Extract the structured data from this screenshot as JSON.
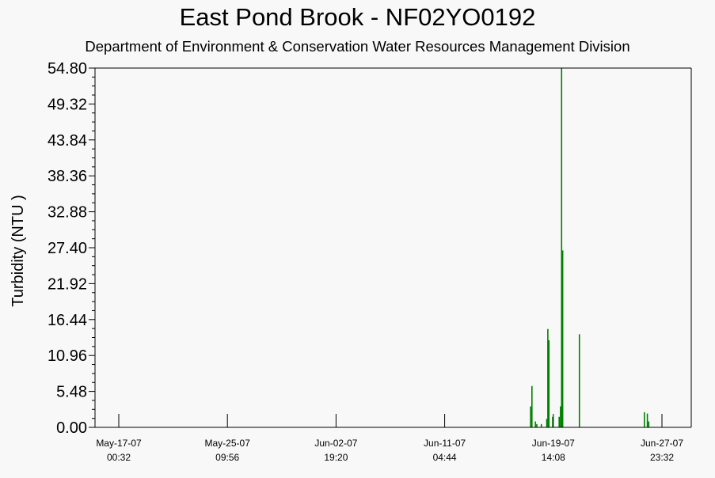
{
  "chart_data": {
    "type": "bar",
    "title": "East Pond Brook - NF02YO0192",
    "subtitle": "Department of Environment & Conservation Water Resources Management Division",
    "ylabel": "Turbidity (NTU )",
    "xlabel": "",
    "ylim": [
      0,
      54.8
    ],
    "yticks": [
      "0.00",
      "5.48",
      "10.96",
      "16.44",
      "21.92",
      "27.40",
      "32.88",
      "38.36",
      "43.84",
      "49.32",
      "54.80"
    ],
    "xlim": [
      "2007-05-17 00:32",
      "2007-06-27 23:32"
    ],
    "xticks": [
      {
        "date": "May-17-07",
        "time": "00:32"
      },
      {
        "date": "May-25-07",
        "time": "09:56"
      },
      {
        "date": "Jun-02-07",
        "time": "19:20"
      },
      {
        "date": "Jun-11-07",
        "time": "04:44"
      },
      {
        "date": "Jun-19-07",
        "time": "14:08"
      },
      {
        "date": "Jun-27-07",
        "time": "23:32"
      }
    ],
    "series_color": "#008000",
    "grid": false,
    "points": [
      {
        "x": "2007-06-17 20:00",
        "y": 3.2
      },
      {
        "x": "2007-06-17 22:30",
        "y": 6.3
      },
      {
        "x": "2007-06-18 05:00",
        "y": 0.9
      },
      {
        "x": "2007-06-18 07:30",
        "y": 0.5
      },
      {
        "x": "2007-06-18 16:00",
        "y": 0.5
      },
      {
        "x": "2007-06-19 02:00",
        "y": 1.3
      },
      {
        "x": "2007-06-19 04:00",
        "y": 15.0
      },
      {
        "x": "2007-06-19 06:00",
        "y": 13.3
      },
      {
        "x": "2007-06-19 13:00",
        "y": 1.6
      },
      {
        "x": "2007-06-20 01:00",
        "y": 1.6
      },
      {
        "x": "2007-06-20 03:30",
        "y": 3.2
      },
      {
        "x": "2007-06-20 05:30",
        "y": 54.8
      },
      {
        "x": "2007-06-20 07:30",
        "y": 27.0
      },
      {
        "x": "2007-06-21 14:30",
        "y": 14.2
      },
      {
        "x": "2007-06-26 15:00",
        "y": 2.3
      },
      {
        "x": "2007-06-26 20:30",
        "y": 2.1
      },
      {
        "x": "2007-06-26 23:00",
        "y": 0.9
      }
    ]
  }
}
